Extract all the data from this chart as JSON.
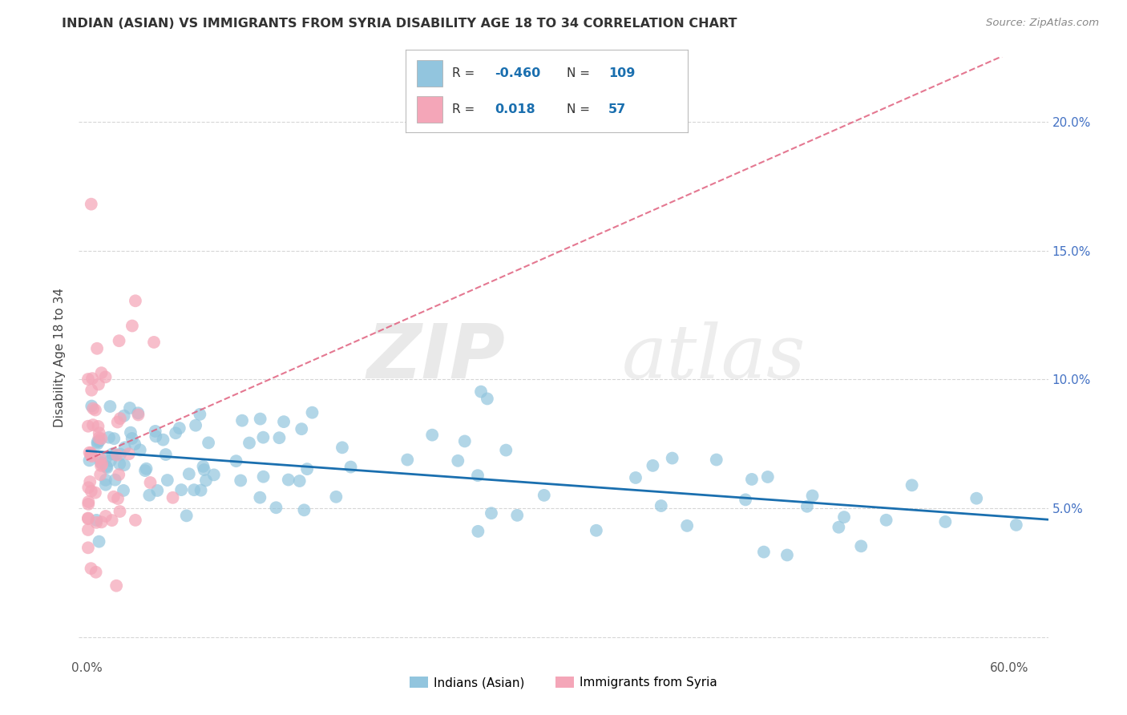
{
  "title": "INDIAN (ASIAN) VS IMMIGRANTS FROM SYRIA DISABILITY AGE 18 TO 34 CORRELATION CHART",
  "source": "Source: ZipAtlas.com",
  "ylabel": "Disability Age 18 to 34",
  "xlabel": "",
  "xlim": [
    -0.005,
    0.625
  ],
  "ylim": [
    -0.008,
    0.225
  ],
  "xticks": [
    0.0,
    0.1,
    0.2,
    0.3,
    0.4,
    0.5,
    0.6
  ],
  "yticks": [
    0.0,
    0.05,
    0.1,
    0.15,
    0.2
  ],
  "xticklabels": [
    "0.0%",
    "",
    "",
    "",
    "",
    "",
    "60.0%"
  ],
  "yticklabels_left": [
    "",
    "",
    "",
    "",
    ""
  ],
  "yticklabels_right": [
    "",
    "5.0%",
    "10.0%",
    "15.0%",
    "20.0%"
  ],
  "blue_color": "#92c5de",
  "pink_color": "#f4a6b8",
  "blue_line_color": "#1a6faf",
  "pink_line_color": "#e0607e",
  "legend_blue_label": "Indians (Asian)",
  "legend_pink_label": "Immigrants from Syria",
  "R_blue": -0.46,
  "N_blue": 109,
  "R_pink": 0.018,
  "N_pink": 57,
  "watermark_zip": "ZIP",
  "watermark_atlas": "atlas",
  "background_color": "#ffffff",
  "grid_color": "#cccccc",
  "right_label_color": "#4472c4",
  "title_color": "#333333",
  "source_color": "#888888"
}
